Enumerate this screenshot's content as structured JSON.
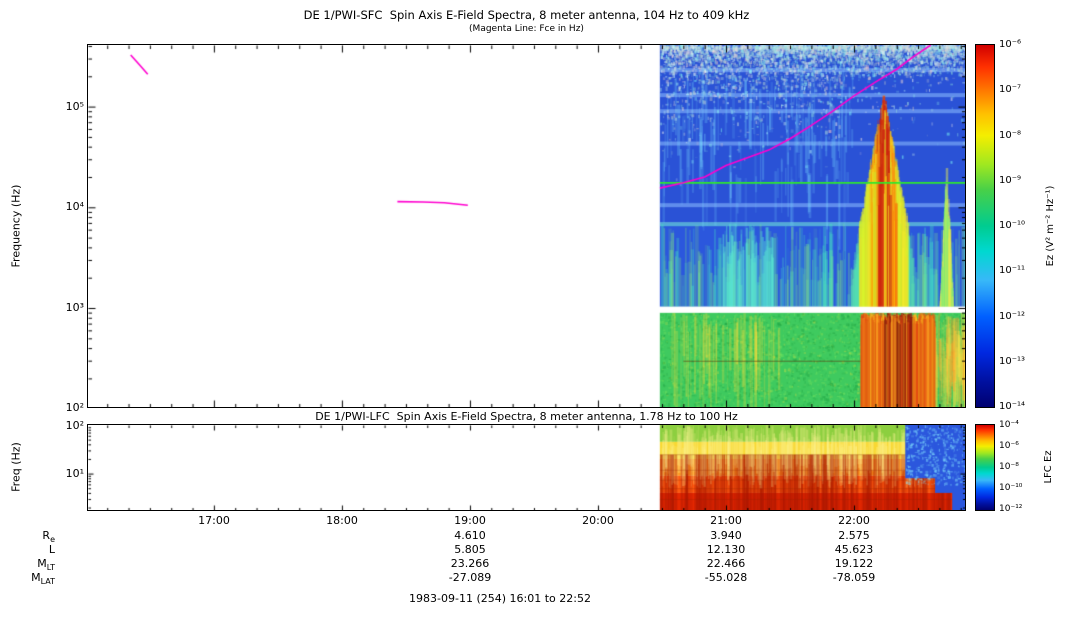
{
  "footer": "1983-09-11 (254) 16:01 to 22:52",
  "ephemeris": {
    "value_times": [
      "19:00",
      "21:00",
      "22:00"
    ],
    "rows": [
      {
        "label_main": "R",
        "label_sub": "e",
        "values": [
          "4.610",
          "3.940",
          "2.575"
        ]
      },
      {
        "label_main": "L",
        "label_sub": "",
        "values": [
          "5.805",
          "12.130",
          "45.623"
        ]
      },
      {
        "label_main": "M",
        "label_sub": "LT",
        "values": [
          "23.266",
          "22.466",
          "19.122"
        ]
      },
      {
        "label_main": "M",
        "label_sub": "LAT",
        "values": [
          "-27.089",
          "-55.028",
          "-78.059"
        ]
      }
    ]
  },
  "chart_data": [
    {
      "type": "heatmap",
      "panel": "SFC",
      "title": "DE 1/PWI-SFC  Spin Axis E-Field Spectra, 8 meter antenna, 104 Hz to 409 kHz",
      "subtitle": "(Magenta Line: Fce in Hz)",
      "ylabel": "Frequency (Hz)",
      "ytick_labels": [
        "10⁵",
        "10⁴",
        "10³",
        "10²"
      ],
      "xtick_labels": [
        "17:00",
        "18:00",
        "19:00",
        "20:00",
        "21:00",
        "22:00"
      ],
      "x_range": [
        "16:01",
        "22:52"
      ],
      "data_start": "20:29",
      "y_range_hz": [
        104,
        409000
      ],
      "y_scale": "log",
      "colorbar": {
        "label": "Ez (V² m⁻² Hz⁻¹)",
        "scale": "log",
        "tick_labels": [
          "10⁻⁶",
          "10⁻⁷",
          "10⁻⁸",
          "10⁻⁹",
          "10⁻¹⁰",
          "10⁻¹¹",
          "10⁻¹²",
          "10⁻¹³",
          "10⁻¹⁴"
        ]
      },
      "fce_line": {
        "color": "#ff00d0",
        "segments": [
          {
            "points": [
              [
                "16:21",
                326000
              ],
              [
                "16:25",
                262000
              ],
              [
                "16:29",
                210000
              ]
            ]
          },
          {
            "points": [
              [
                "18:26",
                11400
              ],
              [
                "18:38",
                11300
              ],
              [
                "18:48",
                11100
              ],
              [
                "18:59",
                10500
              ]
            ]
          },
          {
            "points": [
              [
                "20:29",
                15500
              ],
              [
                "20:40",
                17500
              ],
              [
                "20:50",
                20000
              ],
              [
                "21:00",
                26000
              ],
              [
                "21:10",
                31000
              ],
              [
                "21:20",
                37000
              ],
              [
                "21:30",
                48000
              ],
              [
                "21:40",
                65000
              ],
              [
                "21:50",
                90000
              ],
              [
                "22:00",
                128000
              ],
              [
                "22:10",
                175000
              ],
              [
                "22:20",
                235000
              ],
              [
                "22:28",
                315000
              ],
              [
                "22:36",
                409000
              ]
            ]
          }
        ]
      },
      "green_line_hz": 17500,
      "green_line_color": "#2ee82e",
      "white_gap_hz": [
        900,
        1030
      ],
      "bands": [
        {
          "f_hz": [
            7000,
            409000
          ],
          "color": "#2a52d6"
        },
        {
          "f_hz": [
            1030,
            7000
          ],
          "color": "#2b57dd"
        },
        {
          "f_hz": [
            104,
            900
          ],
          "color": "#3fca5f"
        }
      ],
      "stripes_hz": [
        230000,
        130000,
        90000,
        43000,
        10500
      ],
      "events": [
        {
          "desc": "dense cyan-white speckle near upper edge",
          "t": [
            "20:30",
            "21:55"
          ],
          "f_hz": [
            60000,
            409000
          ],
          "intensity": "moderate"
        },
        {
          "desc": "broadband burst, green-yellow with red core",
          "t": [
            "21:55",
            "22:32"
          ],
          "f_hz": [
            1030,
            150000
          ],
          "intensity": "strong"
        },
        {
          "desc": "intense red-orange low-band emission with dark core",
          "t": [
            "22:03",
            "22:37"
          ],
          "f_hz": [
            104,
            900
          ],
          "intensity": "very strong"
        },
        {
          "desc": "narrow green spike near right edge",
          "t": [
            "22:40",
            "22:46"
          ],
          "f_hz": [
            1030,
            30000
          ],
          "intensity": "moderate"
        }
      ]
    },
    {
      "type": "heatmap",
      "panel": "LFC",
      "title": "DE 1/PWI-LFC  Spin Axis E-Field Spectra, 8 meter antenna, 1.78 Hz to 100 Hz",
      "ylabel": "Freq (Hz)",
      "ytick_labels": [
        "10²",
        "10¹"
      ],
      "x_range": [
        "16:01",
        "22:52"
      ],
      "data_start": "20:29",
      "y_range_hz": [
        1.78,
        100
      ],
      "y_scale": "log",
      "colorbar": {
        "label": "LFC Ez",
        "scale": "log",
        "tick_labels": [
          "10⁻⁴",
          "10⁻⁶",
          "10⁻⁸",
          "10⁻¹⁰",
          "10⁻¹²"
        ]
      },
      "bands": [
        {
          "f_hz": [
            45,
            100
          ],
          "color": "#8ccf3f"
        },
        {
          "f_hz": [
            20,
            45
          ],
          "color": "#f8d832"
        },
        {
          "f_hz": [
            9,
            20
          ],
          "color": "#ff9820"
        },
        {
          "f_hz": [
            4,
            9
          ],
          "color": "#ff5a10"
        },
        {
          "f_hz": [
            1.78,
            4
          ],
          "color": "#e62800"
        }
      ],
      "blue_region": {
        "start": "22:24",
        "upper_f_hz": 8,
        "deeper": "22:38",
        "deeper_f_hz": 4,
        "full": "22:46",
        "color": "#2b57dd"
      }
    }
  ]
}
